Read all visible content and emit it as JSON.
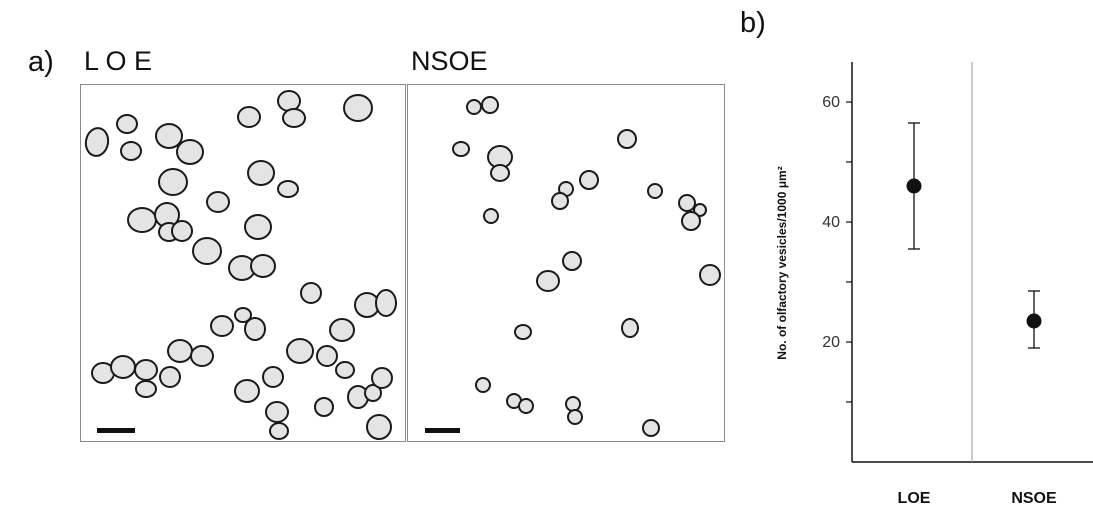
{
  "figure": {
    "panel_a_label": "a)",
    "panel_b_label": "b)",
    "micrographs": [
      {
        "title": "L O E"
      },
      {
        "title": "NSOE"
      }
    ]
  },
  "chart_data": {
    "type": "scatter",
    "title": "",
    "xlabel": "",
    "ylabel": "No. of olfactory vesicles/1000 μm²",
    "categories": [
      "LOE",
      "NSOE"
    ],
    "values": [
      46,
      23.5
    ],
    "error_upper": [
      56.5,
      28.5
    ],
    "error_lower": [
      35.5,
      19
    ],
    "yticks": [
      20,
      40,
      60
    ],
    "ylim": [
      0,
      67
    ],
    "grid": false,
    "separator_between_categories": true,
    "marker_color": "#111111"
  }
}
